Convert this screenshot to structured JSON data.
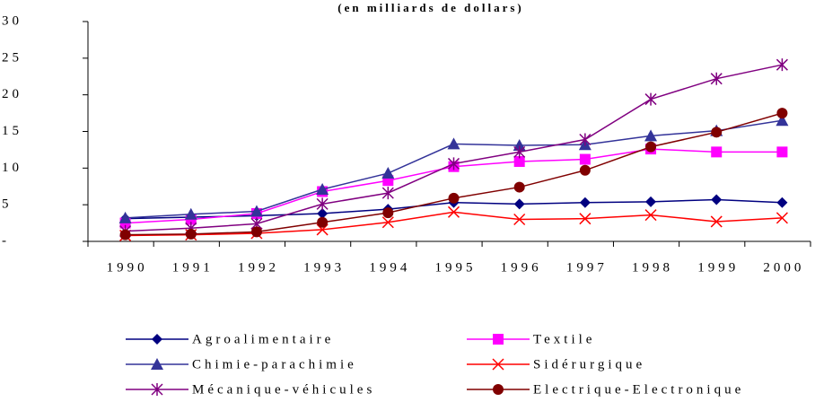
{
  "chart_data": {
    "type": "line",
    "title": "(en milliards de dollars)",
    "categories": [
      "1990",
      "1991",
      "1992",
      "1993",
      "1994",
      "1995",
      "1996",
      "1997",
      "1998",
      "1999",
      "2000"
    ],
    "ylim": [
      0,
      30
    ],
    "yticks": [
      {
        "value": 0,
        "label": "-"
      },
      5,
      10,
      15,
      20,
      25,
      30
    ],
    "grid": false,
    "legend": "bottom",
    "series": [
      {
        "name": "Agroalimentaire",
        "color": "#000080",
        "marker": "diamond",
        "values": [
          3.1,
          3.3,
          3.5,
          3.8,
          4.4,
          5.3,
          5.1,
          5.3,
          5.4,
          5.7,
          5.3
        ]
      },
      {
        "name": "Textile",
        "color": "#ff00ff",
        "marker": "square",
        "values": [
          2.5,
          3.0,
          3.8,
          6.8,
          8.3,
          10.2,
          10.9,
          11.2,
          12.6,
          12.2,
          12.2
        ]
      },
      {
        "name": "Chimie-parachimie",
        "color": "#333399",
        "marker": "triangle",
        "values": [
          3.2,
          3.7,
          4.1,
          7.1,
          9.3,
          13.3,
          13.1,
          13.2,
          14.4,
          15.1,
          16.5
        ]
      },
      {
        "name": "Sidérurgique",
        "color": "#ff0000",
        "marker": "x",
        "values": [
          0.8,
          0.9,
          1.1,
          1.6,
          2.6,
          4.0,
          3.0,
          3.1,
          3.6,
          2.7,
          3.2
        ]
      },
      {
        "name": "Mécanique-véhicules",
        "color": "#800080",
        "marker": "star",
        "values": [
          1.4,
          1.8,
          2.4,
          5.1,
          6.6,
          10.6,
          12.2,
          13.9,
          19.4,
          22.2,
          24.1
        ]
      },
      {
        "name": "Electrique-Electronique",
        "color": "#800000",
        "marker": "circle",
        "values": [
          0.9,
          1.0,
          1.3,
          2.6,
          3.9,
          5.9,
          7.4,
          9.7,
          12.9,
          14.9,
          17.5
        ]
      }
    ]
  }
}
